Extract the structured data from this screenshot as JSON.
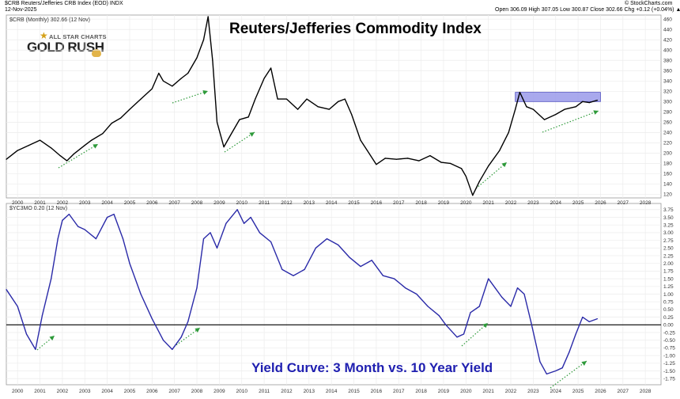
{
  "header": {
    "symbol_line": "$CRB Reuters/Jefferies CRB Index (EOD) INDX",
    "date": "12-Nov-2025",
    "ohlc": "Open 306.09  High 307.05  Low 300.87  Close 302.66  Chg +0.12 (+0.04%) ▲",
    "source": "© StockCharts.com"
  },
  "logo": {
    "top_text": "ALL STAR CHARTS",
    "main_text": "GOLD RUSH"
  },
  "chart_data": [
    {
      "type": "line",
      "legend": "$CRB (Monthly) 302.66 (12 Nov)",
      "title": "Reuters/Jefferies Commodity Index",
      "color": "#000000",
      "y_ticks": [
        120,
        140,
        160,
        180,
        200,
        220,
        240,
        260,
        280,
        300,
        320,
        340,
        360,
        380,
        400,
        420,
        440,
        460
      ],
      "x_ticks": [
        "2000",
        "2001",
        "2002",
        "2003",
        "2004",
        "2005",
        "2006",
        "2007",
        "2008",
        "2009",
        "2010",
        "2011",
        "2012",
        "2013",
        "2014",
        "2015",
        "2016",
        "2017",
        "2018",
        "2019",
        "2020",
        "2021",
        "2022",
        "2023",
        "2024",
        "2025",
        "2026",
        "2027",
        "2028"
      ],
      "ylim": [
        113,
        468
      ],
      "xlim": [
        1999.5,
        2028.7
      ],
      "x": [
        1999.5,
        2000.0,
        2000.5,
        2001.0,
        2001.5,
        2001.9,
        2002.2,
        2002.5,
        2003.0,
        2003.3,
        2003.8,
        2004.2,
        2004.6,
        2005.0,
        2005.5,
        2006.0,
        2006.3,
        2006.5,
        2006.9,
        2007.3,
        2007.6,
        2008.0,
        2008.3,
        2008.5,
        2008.7,
        2008.9,
        2009.2,
        2009.5,
        2009.9,
        2010.3,
        2010.6,
        2011.0,
        2011.3,
        2011.6,
        2012.0,
        2012.5,
        2012.9,
        2013.4,
        2013.9,
        2014.3,
        2014.6,
        2014.9,
        2015.3,
        2015.6,
        2016.0,
        2016.4,
        2016.9,
        2017.4,
        2017.9,
        2018.4,
        2018.9,
        2019.3,
        2019.8,
        2020.0,
        2020.3,
        2020.6,
        2021.0,
        2021.5,
        2021.9,
        2022.2,
        2022.4,
        2022.7,
        2023.0,
        2023.5,
        2024.0,
        2024.4,
        2024.9,
        2025.2,
        2025.5,
        2025.86
      ],
      "y": [
        188,
        205,
        215,
        225,
        210,
        195,
        185,
        198,
        215,
        225,
        238,
        258,
        268,
        285,
        305,
        325,
        355,
        340,
        330,
        345,
        355,
        385,
        420,
        465,
        380,
        260,
        212,
        235,
        265,
        270,
        305,
        345,
        365,
        305,
        305,
        285,
        305,
        290,
        285,
        300,
        305,
        275,
        225,
        205,
        178,
        190,
        188,
        190,
        185,
        195,
        182,
        180,
        170,
        155,
        118,
        145,
        175,
        205,
        240,
        285,
        318,
        290,
        285,
        265,
        275,
        285,
        290,
        300,
        298,
        302.66
      ]
    },
    {
      "type": "line",
      "legend": "$YC3MO 0.20 (12 Nov)",
      "title": "Yield Curve: 3 Month vs. 10 Year Yield",
      "color": "#2a2aa8",
      "y_ticks": [
        -1.75,
        -1.5,
        -1.25,
        -1.0,
        -0.75,
        -0.5,
        -0.25,
        0.0,
        0.25,
        0.5,
        0.75,
        1.0,
        1.25,
        1.5,
        1.75,
        2.0,
        2.25,
        2.5,
        2.75,
        3.0,
        3.25,
        3.5,
        3.75
      ],
      "x_ticks": [
        "2000",
        "2001",
        "2002",
        "2003",
        "2004",
        "2005",
        "2006",
        "2007",
        "2008",
        "2009",
        "2010",
        "2011",
        "2012",
        "2013",
        "2014",
        "2015",
        "2016",
        "2017",
        "2018",
        "2019",
        "2020",
        "2021",
        "2022",
        "2023",
        "2024",
        "2025",
        "2026",
        "2027",
        "2028"
      ],
      "ylim": [
        -1.95,
        3.95
      ],
      "xlim": [
        1999.5,
        2028.7
      ],
      "zero_line": 0,
      "x": [
        1999.5,
        2000.0,
        2000.4,
        2000.8,
        2001.1,
        2001.5,
        2001.8,
        2002.0,
        2002.3,
        2002.7,
        2003.0,
        2003.5,
        2004.0,
        2004.3,
        2004.7,
        2005.0,
        2005.5,
        2006.0,
        2006.5,
        2006.9,
        2007.3,
        2007.6,
        2008.0,
        2008.3,
        2008.6,
        2008.9,
        2009.3,
        2009.8,
        2010.1,
        2010.4,
        2010.8,
        2011.3,
        2011.8,
        2012.3,
        2012.8,
        2013.3,
        2013.8,
        2014.3,
        2014.8,
        2015.3,
        2015.8,
        2016.3,
        2016.8,
        2017.3,
        2017.8,
        2018.3,
        2018.8,
        2019.1,
        2019.6,
        2019.9,
        2020.2,
        2020.6,
        2021.0,
        2021.3,
        2021.6,
        2022.0,
        2022.3,
        2022.6,
        2022.9,
        2023.3,
        2023.6,
        2024.0,
        2024.3,
        2024.6,
        2024.9,
        2025.2,
        2025.5,
        2025.86
      ],
      "y": [
        1.15,
        0.6,
        -0.3,
        -0.8,
        0.3,
        1.5,
        2.8,
        3.4,
        3.6,
        3.2,
        3.1,
        2.8,
        3.5,
        3.6,
        2.8,
        2.0,
        1.0,
        0.2,
        -0.5,
        -0.8,
        -0.4,
        0.1,
        1.2,
        2.8,
        3.0,
        2.5,
        3.3,
        3.75,
        3.3,
        3.5,
        3.0,
        2.7,
        1.8,
        1.6,
        1.8,
        2.5,
        2.8,
        2.6,
        2.2,
        1.9,
        2.1,
        1.6,
        1.5,
        1.2,
        1.0,
        0.6,
        0.3,
        0.0,
        -0.4,
        -0.3,
        0.4,
        0.6,
        1.5,
        1.2,
        0.9,
        0.6,
        1.2,
        1.0,
        0.1,
        -1.2,
        -1.6,
        -1.5,
        -1.4,
        -0.9,
        -0.3,
        0.25,
        0.1,
        0.2
      ]
    }
  ],
  "annotations": {
    "resistance_zone": [
      300,
      318
    ]
  }
}
